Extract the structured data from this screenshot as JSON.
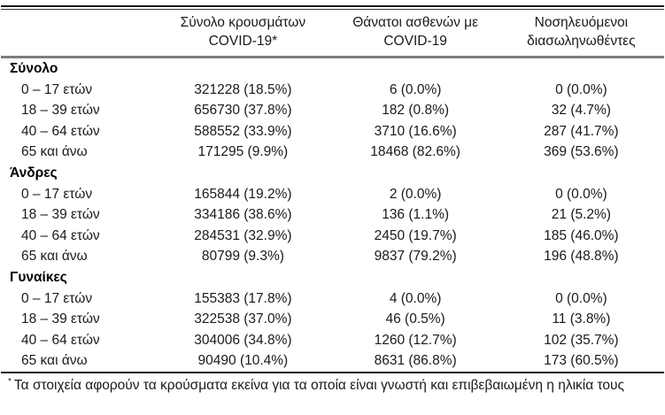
{
  "table": {
    "columns": [
      {
        "line1": "Σύνολο κρουσμάτων",
        "line2": "COVID-19*"
      },
      {
        "line1": "Θάνατοι ασθενών με",
        "line2": "COVID-19"
      },
      {
        "line1": "Νοσηλευόμενοι",
        "line2": "διασωληνωθέντες"
      }
    ],
    "groups": [
      {
        "label": "Σύνολο",
        "rows": [
          {
            "label": "0 – 17 ετών",
            "cases": "321228 (18.5%)",
            "deaths": "6 (0.0%)",
            "intubated": "0 (0.0%)"
          },
          {
            "label": "18 – 39 ετών",
            "cases": "656730 (37.8%)",
            "deaths": "182 (0.8%)",
            "intubated": "32 (4.7%)"
          },
          {
            "label": "40 – 64 ετών",
            "cases": "588552 (33.9%)",
            "deaths": "3710 (16.6%)",
            "intubated": "287 (41.7%)"
          },
          {
            "label": "65 και άνω",
            "cases": "171295 (9.9%)",
            "deaths": "18468 (82.6%)",
            "intubated": "369 (53.6%)"
          }
        ]
      },
      {
        "label": "Άνδρες",
        "rows": [
          {
            "label": "0 – 17 ετών",
            "cases": "165844 (19.2%)",
            "deaths": "2 (0.0%)",
            "intubated": "0 (0.0%)"
          },
          {
            "label": "18 – 39 ετών",
            "cases": "334186 (38.6%)",
            "deaths": "136 (1.1%)",
            "intubated": "21 (5.2%)"
          },
          {
            "label": "40 – 64 ετών",
            "cases": "284531 (32.9%)",
            "deaths": "2450 (19.7%)",
            "intubated": "185 (46.0%)"
          },
          {
            "label": "65 και άνω",
            "cases": "80799 (9.3%)",
            "deaths": "9837 (79.2%)",
            "intubated": "196 (48.8%)"
          }
        ]
      },
      {
        "label": "Γυναίκες",
        "rows": [
          {
            "label": "0 – 17 ετών",
            "cases": "155383 (17.8%)",
            "deaths": "4 (0.0%)",
            "intubated": "0 (0.0%)"
          },
          {
            "label": "18 – 39 ετών",
            "cases": "322538 (37.0%)",
            "deaths": "46 (0.5%)",
            "intubated": "11 (3.8%)"
          },
          {
            "label": "40 – 64 ετών",
            "cases": "304006 (34.8%)",
            "deaths": "1260 (12.7%)",
            "intubated": "102 (35.7%)"
          },
          {
            "label": "65 και άνω",
            "cases": "90490 (10.4%)",
            "deaths": "8631 (86.8%)",
            "intubated": "173 (60.5%)"
          }
        ]
      }
    ]
  },
  "footnote": {
    "marker": "*",
    "text": "Τα στοιχεία αφορούν τα κρούσματα εκείνα για τα οποία είναι γνωστή και επιβεβαιωμένη η ηλικία τους"
  }
}
